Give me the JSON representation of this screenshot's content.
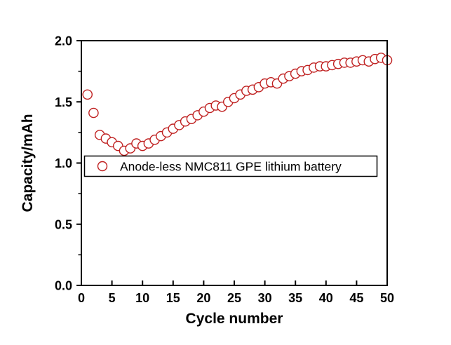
{
  "figure": {
    "background": "#ffffff",
    "axis_color": "#000000"
  },
  "chart_data": {
    "type": "scatter",
    "title": "",
    "xlabel": "Cycle number",
    "ylabel": "Capacity/mAh",
    "xlim": [
      0,
      50
    ],
    "ylim": [
      0.0,
      2.0
    ],
    "x_ticks": [
      0,
      5,
      10,
      15,
      20,
      25,
      30,
      35,
      40,
      45,
      50
    ],
    "x_tick_labels": [
      "0",
      "5",
      "10",
      "15",
      "20",
      "25",
      "30",
      "35",
      "40",
      "45",
      "50"
    ],
    "y_ticks": [
      0.0,
      0.5,
      1.0,
      1.5,
      2.0
    ],
    "y_tick_labels": [
      "0.0",
      "0.5",
      "1.0",
      "1.5",
      "2.0"
    ],
    "y_minor_tick_step": 0.25,
    "grid": false,
    "frame": "full-box",
    "legend": {
      "position": "inside-middle-left",
      "entries": [
        {
          "label": "Anode-less NMC811 GPE lithium battery",
          "marker": "open-circle",
          "color": "#bf1f1f"
        }
      ]
    },
    "series": [
      {
        "name": "Anode-less NMC811 GPE lithium battery",
        "marker": "open-circle",
        "marker_fill": "#ffffff",
        "color": "#bf1f1f",
        "x": [
          1,
          2,
          3,
          4,
          5,
          6,
          7,
          8,
          9,
          10,
          11,
          12,
          13,
          14,
          15,
          16,
          17,
          18,
          19,
          20,
          21,
          22,
          23,
          24,
          25,
          26,
          27,
          28,
          29,
          30,
          31,
          32,
          33,
          34,
          35,
          36,
          37,
          38,
          39,
          40,
          41,
          42,
          43,
          44,
          45,
          46,
          47,
          48,
          49,
          50
        ],
        "y": [
          1.56,
          1.41,
          1.23,
          1.2,
          1.17,
          1.14,
          1.1,
          1.12,
          1.16,
          1.14,
          1.16,
          1.19,
          1.22,
          1.25,
          1.28,
          1.31,
          1.34,
          1.36,
          1.39,
          1.42,
          1.45,
          1.47,
          1.46,
          1.5,
          1.53,
          1.56,
          1.59,
          1.6,
          1.62,
          1.65,
          1.66,
          1.65,
          1.69,
          1.71,
          1.73,
          1.75,
          1.76,
          1.78,
          1.79,
          1.79,
          1.8,
          1.81,
          1.82,
          1.82,
          1.83,
          1.84,
          1.83,
          1.85,
          1.86,
          1.84
        ]
      }
    ]
  }
}
